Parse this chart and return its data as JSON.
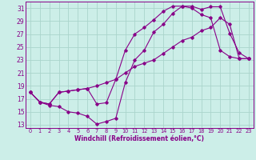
{
  "xlabel": "Windchill (Refroidissement éolien,°C)",
  "bg_color": "#cceee8",
  "grid_color": "#aad4cc",
  "line_color": "#880088",
  "xlim": [
    -0.5,
    23.5
  ],
  "ylim": [
    12.5,
    32.0
  ],
  "xticks": [
    0,
    1,
    2,
    3,
    4,
    5,
    6,
    7,
    8,
    9,
    10,
    11,
    12,
    13,
    14,
    15,
    16,
    17,
    18,
    19,
    20,
    21,
    22,
    23
  ],
  "yticks": [
    13,
    15,
    17,
    19,
    21,
    23,
    25,
    27,
    29,
    31
  ],
  "line1_x": [
    0,
    1,
    2,
    3,
    4,
    5,
    6,
    7,
    8,
    9,
    10,
    11,
    12,
    13,
    14,
    15,
    16,
    17,
    18,
    19,
    20,
    21,
    22,
    23
  ],
  "line1_y": [
    18.0,
    16.5,
    16.0,
    15.8,
    15.0,
    14.8,
    14.3,
    13.1,
    13.5,
    14.0,
    19.5,
    23.0,
    24.5,
    27.3,
    28.5,
    30.2,
    31.3,
    31.3,
    30.8,
    31.2,
    31.2,
    27.1,
    24.1,
    23.2
  ],
  "line2_x": [
    0,
    1,
    2,
    3,
    4,
    5,
    6,
    7,
    8,
    9,
    10,
    11,
    12,
    13,
    14,
    15,
    16,
    17,
    18,
    19,
    20,
    21,
    22,
    23
  ],
  "line2_y": [
    18.0,
    16.5,
    16.2,
    18.0,
    18.2,
    18.4,
    18.6,
    16.2,
    16.4,
    20.0,
    24.5,
    27.0,
    28.0,
    29.2,
    30.5,
    31.3,
    31.3,
    31.0,
    30.0,
    29.5,
    24.5,
    23.5,
    23.2,
    23.2
  ],
  "line3_x": [
    0,
    1,
    2,
    3,
    4,
    5,
    6,
    7,
    8,
    9,
    10,
    11,
    12,
    13,
    14,
    15,
    16,
    17,
    18,
    19,
    20,
    21,
    22,
    23
  ],
  "line3_y": [
    18.0,
    16.5,
    16.2,
    18.0,
    18.2,
    18.4,
    18.6,
    19.0,
    19.5,
    20.0,
    21.0,
    22.0,
    22.5,
    23.0,
    24.0,
    25.0,
    26.0,
    26.5,
    27.5,
    28.0,
    29.5,
    28.5,
    23.2,
    23.2
  ],
  "xlabel_fontsize": 5.5,
  "tick_fontsize": 5.5,
  "xtick_fontsize": 4.8,
  "marker_size": 1.8,
  "line_width": 0.8
}
